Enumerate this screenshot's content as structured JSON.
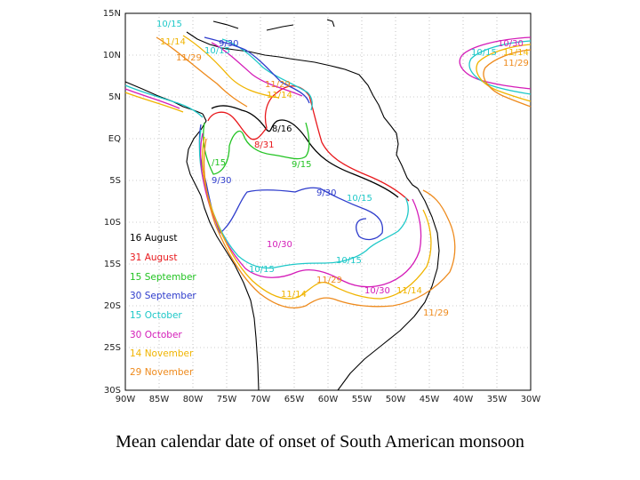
{
  "caption": "Mean calendar date of onset of South American monsoon",
  "map": {
    "lat_ticks": [
      "15N",
      "10N",
      "5N",
      "EQ",
      "5S",
      "10S",
      "15S",
      "20S",
      "25S",
      "30S"
    ],
    "lon_ticks": [
      "90W",
      "85W",
      "80W",
      "75W",
      "70W",
      "65W",
      "60W",
      "55W",
      "50W",
      "45W",
      "40W",
      "35W",
      "30W"
    ],
    "legend": [
      {
        "label": "16 August",
        "color": "#000000"
      },
      {
        "label": "31 August",
        "color": "#e8181c"
      },
      {
        "label": "15 September",
        "color": "#22c322"
      },
      {
        "label": "30 September",
        "color": "#2e3ccc"
      },
      {
        "label": "15 October",
        "color": "#1ec8c8"
      },
      {
        "label": "30 October",
        "color": "#d41cb8"
      },
      {
        "label": "14 November",
        "color": "#f0b400"
      },
      {
        "label": "29 November",
        "color": "#ee8a1c"
      }
    ],
    "contour_labels": [
      {
        "text": "10/15",
        "color": "#1ec8c8"
      },
      {
        "text": "11/14",
        "color": "#f0b400"
      },
      {
        "text": "9/30",
        "color": "#2e3ccc"
      },
      {
        "text": "10/15",
        "color": "#1ec8c8"
      },
      {
        "text": "11/29",
        "color": "#ee8a1c"
      },
      {
        "text": "11/29",
        "color": "#ee8a1c"
      },
      {
        "text": "11/14",
        "color": "#f0b400"
      },
      {
        "text": "8/16",
        "color": "#000000"
      },
      {
        "text": "8/31",
        "color": "#e8181c"
      },
      {
        "text": "/15",
        "color": "#22c322"
      },
      {
        "text": "9/15",
        "color": "#22c322"
      },
      {
        "text": "9/30",
        "color": "#2e3ccc"
      },
      {
        "text": "9/30",
        "color": "#2e3ccc"
      },
      {
        "text": "10/15",
        "color": "#1ec8c8"
      },
      {
        "text": "10/30",
        "color": "#d41cb8"
      },
      {
        "text": "10/15",
        "color": "#1ec8c8"
      },
      {
        "text": "10/15",
        "color": "#1ec8c8"
      },
      {
        "text": "11/29",
        "color": "#ee8a1c"
      },
      {
        "text": "10/30",
        "color": "#d41cb8"
      },
      {
        "text": "11/14",
        "color": "#f0b400"
      },
      {
        "text": "11/14",
        "color": "#f0b400"
      },
      {
        "text": "11/29",
        "color": "#ee8a1c"
      },
      {
        "text": "10/30",
        "color": "#d41cb8"
      },
      {
        "text": "10/15",
        "color": "#1ec8c8"
      },
      {
        "text": "11/14",
        "color": "#f0b400"
      },
      {
        "text": "11/29",
        "color": "#ee8a1c"
      }
    ]
  }
}
